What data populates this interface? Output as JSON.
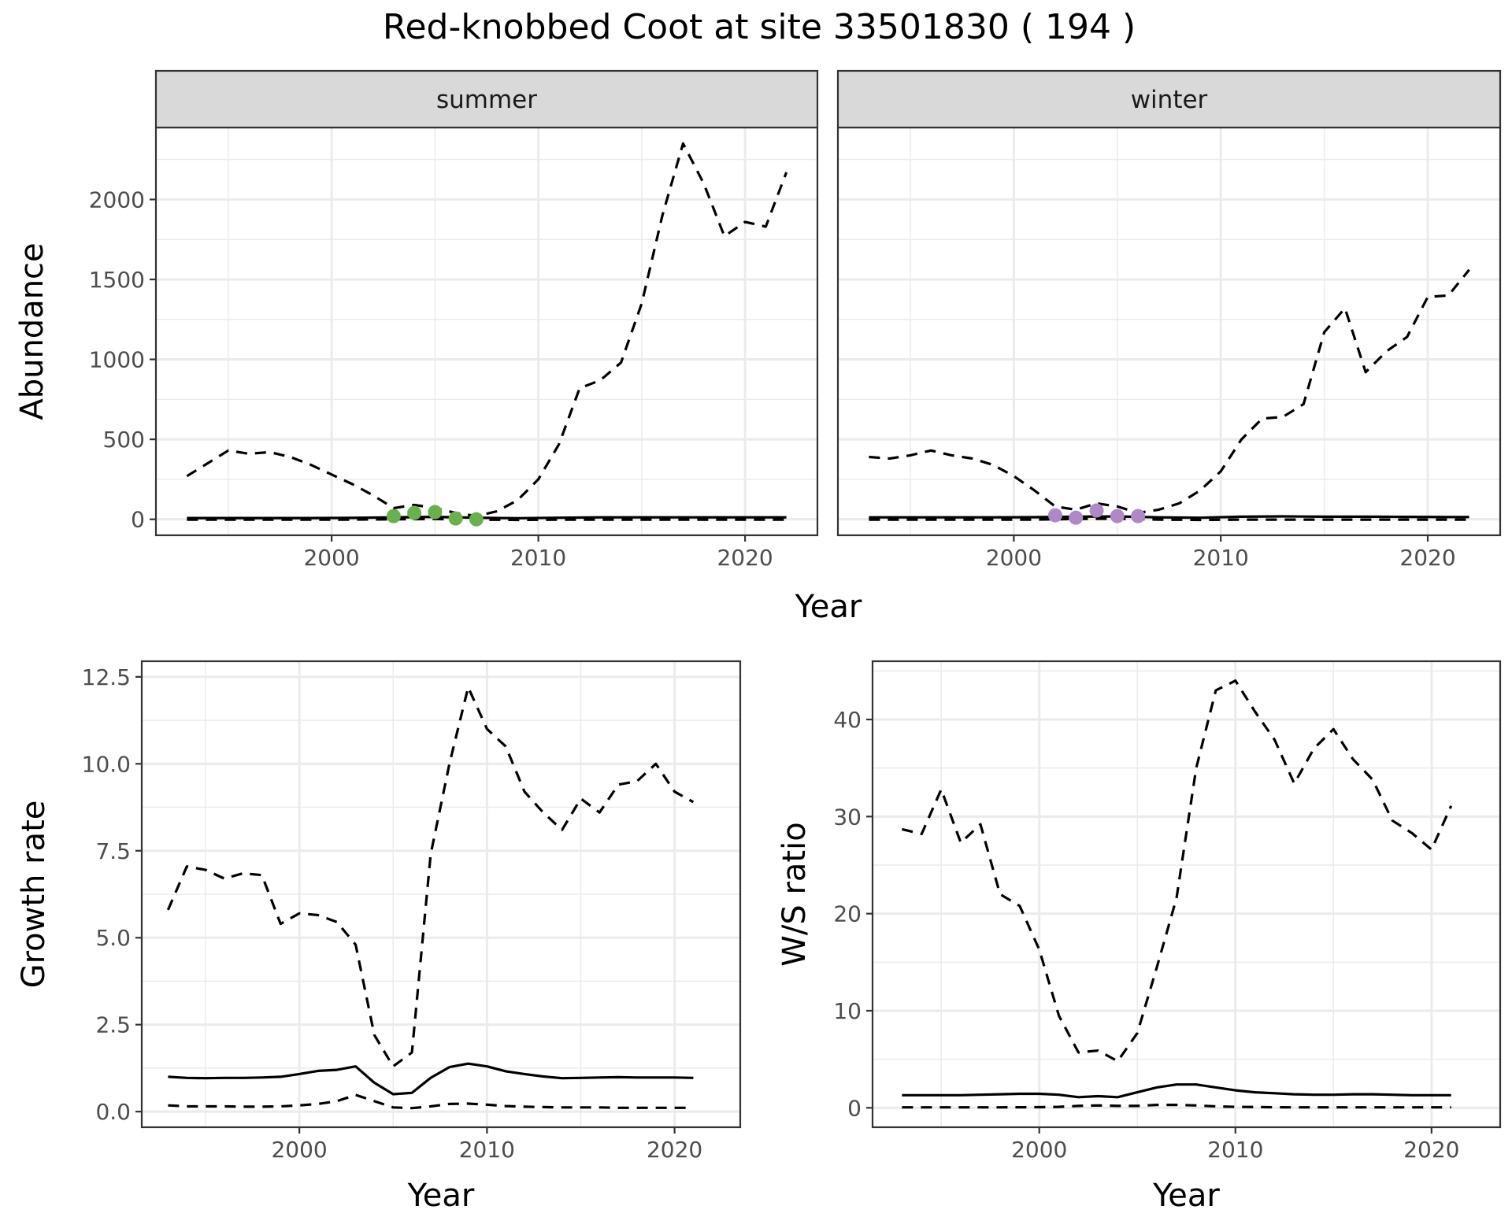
{
  "title": "Red-knobbed Coot at site 33501830 ( 194 )",
  "chart_data": [
    {
      "id": "summer",
      "type": "line",
      "strip": "summer",
      "xlabel": "",
      "ylabel": "Abundance",
      "xlim": [
        1991.5,
        2023.5
      ],
      "ylim": [
        -100,
        2450
      ],
      "xticks": [
        2000,
        2010,
        2020
      ],
      "yticks": [
        0,
        500,
        1000,
        1500,
        2000
      ],
      "grid": true,
      "series": [
        {
          "style": "solid",
          "x": [
            1993,
            1995,
            1997,
            1999,
            2001,
            2003,
            2005,
            2007,
            2009,
            2011,
            2013,
            2015,
            2017,
            2019,
            2021,
            2022
          ],
          "values": [
            8,
            8,
            8,
            8,
            9,
            12,
            15,
            10,
            7,
            10,
            12,
            12,
            12,
            12,
            12,
            12
          ]
        },
        {
          "style": "dashed",
          "x": [
            1993,
            1994,
            1995,
            1996,
            1997,
            1998,
            1999,
            2000,
            2001,
            2002,
            2003,
            2004,
            2005,
            2006,
            2007,
            2008,
            2009,
            2010,
            2011,
            2012,
            2013,
            2014,
            2015,
            2016,
            2017,
            2018,
            2019,
            2020,
            2021,
            2022
          ],
          "values": [
            270,
            350,
            430,
            410,
            420,
            390,
            340,
            280,
            220,
            150,
            70,
            90,
            70,
            40,
            20,
            50,
            120,
            250,
            470,
            820,
            870,
            980,
            1350,
            1900,
            2350,
            2100,
            1770,
            1860,
            1830,
            2170
          ]
        },
        {
          "style": "dashed",
          "x": [
            1993,
            1995,
            1997,
            1999,
            2001,
            2003,
            2005,
            2007,
            2009,
            2011,
            2013,
            2015,
            2017,
            2019,
            2021,
            2022
          ],
          "values": [
            -2,
            -2,
            -2,
            -2,
            -2,
            0,
            2,
            -2,
            -4,
            -2,
            -2,
            -2,
            -2,
            -2,
            -2,
            -2
          ]
        }
      ],
      "points": {
        "color": "#6ab04c",
        "x": [
          2003,
          2004,
          2005,
          2006,
          2007
        ],
        "values": [
          20,
          40,
          45,
          5,
          0
        ]
      }
    },
    {
      "id": "winter",
      "type": "line",
      "strip": "winter",
      "xlabel": "",
      "ylabel": "",
      "xlim": [
        1991.5,
        2023.5
      ],
      "ylim": [
        -100,
        2450
      ],
      "xticks": [
        2000,
        2010,
        2020
      ],
      "yticks": [
        0,
        500,
        1000,
        1500,
        2000
      ],
      "grid": true,
      "series": [
        {
          "style": "solid",
          "x": [
            1993,
            1995,
            1997,
            1999,
            2001,
            2003,
            2005,
            2007,
            2009,
            2011,
            2013,
            2015,
            2017,
            2019,
            2021,
            2022
          ],
          "values": [
            12,
            12,
            12,
            12,
            13,
            16,
            18,
            12,
            10,
            16,
            18,
            16,
            16,
            15,
            14,
            14
          ]
        },
        {
          "style": "dashed",
          "x": [
            1993,
            1994,
            1995,
            1996,
            1997,
            1998,
            1999,
            2000,
            2001,
            2002,
            2003,
            2004,
            2005,
            2006,
            2007,
            2008,
            2009,
            2010,
            2011,
            2012,
            2013,
            2014,
            2015,
            2016,
            2017,
            2018,
            2019,
            2020,
            2021,
            2022
          ],
          "values": [
            390,
            380,
            400,
            430,
            400,
            380,
            340,
            270,
            180,
            80,
            60,
            100,
            80,
            40,
            60,
            100,
            180,
            300,
            500,
            630,
            640,
            720,
            1170,
            1320,
            920,
            1050,
            1140,
            1390,
            1400,
            1560
          ]
        },
        {
          "style": "dashed",
          "x": [
            1993,
            1995,
            1997,
            1999,
            2001,
            2003,
            2005,
            2007,
            2009,
            2011,
            2013,
            2015,
            2017,
            2019,
            2021,
            2022
          ],
          "values": [
            -2,
            -2,
            -2,
            -2,
            -2,
            2,
            4,
            -2,
            -4,
            -2,
            -2,
            -2,
            -2,
            -2,
            -2,
            -2
          ]
        }
      ],
      "points": {
        "color": "#ae89c6",
        "x": [
          2002,
          2003,
          2004,
          2005,
          2006
        ],
        "values": [
          25,
          10,
          55,
          20,
          20
        ]
      }
    },
    {
      "id": "growth",
      "type": "line",
      "xlabel": "Year",
      "ylabel": "Growth rate",
      "xlim": [
        1991.6,
        2023.5
      ],
      "ylim": [
        -0.45,
        12.95
      ],
      "xticks": [
        2000,
        2010,
        2020
      ],
      "yticks": [
        0.0,
        2.5,
        5.0,
        7.5,
        10.0,
        12.5
      ],
      "ytick_labels": [
        "0.0",
        "2.5",
        "5.0",
        "7.5",
        "10.0",
        "12.5"
      ],
      "grid": true,
      "series": [
        {
          "style": "solid",
          "x": [
            1993,
            1994,
            1995,
            1996,
            1997,
            1998,
            1999,
            2000,
            2001,
            2002,
            2003,
            2004,
            2005,
            2006,
            2007,
            2008,
            2009,
            2010,
            2011,
            2012,
            2013,
            2014,
            2015,
            2016,
            2017,
            2018,
            2019,
            2020,
            2021
          ],
          "values": [
            1.0,
            0.97,
            0.96,
            0.97,
            0.97,
            0.98,
            1.0,
            1.08,
            1.17,
            1.2,
            1.3,
            0.83,
            0.5,
            0.54,
            0.97,
            1.28,
            1.38,
            1.3,
            1.16,
            1.08,
            1.01,
            0.96,
            0.97,
            0.98,
            0.99,
            0.98,
            0.98,
            0.98,
            0.97
          ]
        },
        {
          "style": "dashed",
          "x": [
            1993,
            1994,
            1995,
            1996,
            1997,
            1998,
            1999,
            2000,
            2001,
            2002,
            2003,
            2004,
            2005,
            2006,
            2007,
            2008,
            2009,
            2010,
            2011,
            2012,
            2013,
            2014,
            2015,
            2016,
            2017,
            2018,
            2019,
            2020,
            2021
          ],
          "values": [
            5.8,
            7.05,
            6.95,
            6.7,
            6.85,
            6.8,
            5.4,
            5.7,
            5.65,
            5.45,
            4.8,
            2.2,
            1.3,
            1.7,
            7.4,
            10.0,
            12.2,
            11.0,
            10.5,
            9.2,
            8.6,
            8.1,
            9.0,
            8.6,
            9.4,
            9.5,
            10.0,
            9.2,
            8.9
          ]
        },
        {
          "style": "dashed",
          "x": [
            1993,
            1994,
            1995,
            1996,
            1997,
            1998,
            1999,
            2000,
            2001,
            2002,
            2003,
            2004,
            2005,
            2006,
            2007,
            2008,
            2009,
            2010,
            2011,
            2012,
            2013,
            2014,
            2015,
            2016,
            2017,
            2018,
            2019,
            2020,
            2021
          ],
          "values": [
            0.18,
            0.15,
            0.15,
            0.15,
            0.14,
            0.14,
            0.15,
            0.18,
            0.22,
            0.3,
            0.48,
            0.3,
            0.12,
            0.1,
            0.15,
            0.22,
            0.23,
            0.2,
            0.16,
            0.14,
            0.13,
            0.12,
            0.12,
            0.12,
            0.11,
            0.11,
            0.11,
            0.11,
            0.11
          ]
        }
      ]
    },
    {
      "id": "ratio",
      "type": "line",
      "xlabel": "Year",
      "ylabel": "W/S ratio",
      "xlim": [
        1991.5,
        2023.5
      ],
      "ylim": [
        -2,
        46
      ],
      "xticks": [
        2000,
        2010,
        2020
      ],
      "yticks": [
        0,
        10,
        20,
        30,
        40
      ],
      "grid": true,
      "series": [
        {
          "style": "solid",
          "x": [
            1993,
            1994,
            1995,
            1996,
            1997,
            1998,
            1999,
            2000,
            2001,
            2002,
            2003,
            2004,
            2005,
            2006,
            2007,
            2008,
            2009,
            2010,
            2011,
            2012,
            2013,
            2014,
            2015,
            2016,
            2017,
            2018,
            2019,
            2020,
            2021
          ],
          "values": [
            1.3,
            1.3,
            1.3,
            1.3,
            1.35,
            1.4,
            1.45,
            1.45,
            1.35,
            1.1,
            1.2,
            1.1,
            1.6,
            2.1,
            2.4,
            2.4,
            2.1,
            1.8,
            1.6,
            1.5,
            1.4,
            1.35,
            1.35,
            1.4,
            1.4,
            1.35,
            1.3,
            1.3,
            1.3
          ]
        },
        {
          "style": "dashed",
          "x": [
            1993,
            1994,
            1995,
            1996,
            1997,
            1998,
            1999,
            2000,
            2001,
            2002,
            2003,
            2004,
            2005,
            2006,
            2007,
            2008,
            2009,
            2010,
            2011,
            2012,
            2013,
            2014,
            2015,
            2016,
            2017,
            2018,
            2019,
            2020,
            2021
          ],
          "values": [
            28.7,
            28.2,
            32.8,
            27.3,
            29.2,
            22.0,
            20.8,
            16.3,
            9.5,
            5.7,
            5.9,
            4.8,
            7.7,
            14.5,
            21.6,
            35.0,
            43.0,
            44.0,
            40.8,
            37.9,
            33.4,
            37.0,
            39.0,
            35.9,
            33.8,
            29.6,
            28.3,
            26.6,
            31.1
          ]
        },
        {
          "style": "dashed",
          "x": [
            1993,
            1994,
            1995,
            1996,
            1997,
            1998,
            1999,
            2000,
            2001,
            2002,
            2003,
            2004,
            2005,
            2006,
            2007,
            2008,
            2009,
            2010,
            2011,
            2012,
            2013,
            2014,
            2015,
            2016,
            2017,
            2018,
            2019,
            2020,
            2021
          ],
          "values": [
            0.05,
            0.05,
            0.05,
            0.05,
            0.05,
            0.05,
            0.06,
            0.07,
            0.1,
            0.2,
            0.25,
            0.2,
            0.2,
            0.3,
            0.3,
            0.25,
            0.15,
            0.1,
            0.08,
            0.06,
            0.05,
            0.05,
            0.05,
            0.05,
            0.05,
            0.05,
            0.05,
            0.05,
            0.05
          ]
        }
      ]
    }
  ],
  "shared_xlabel_top": "Year"
}
